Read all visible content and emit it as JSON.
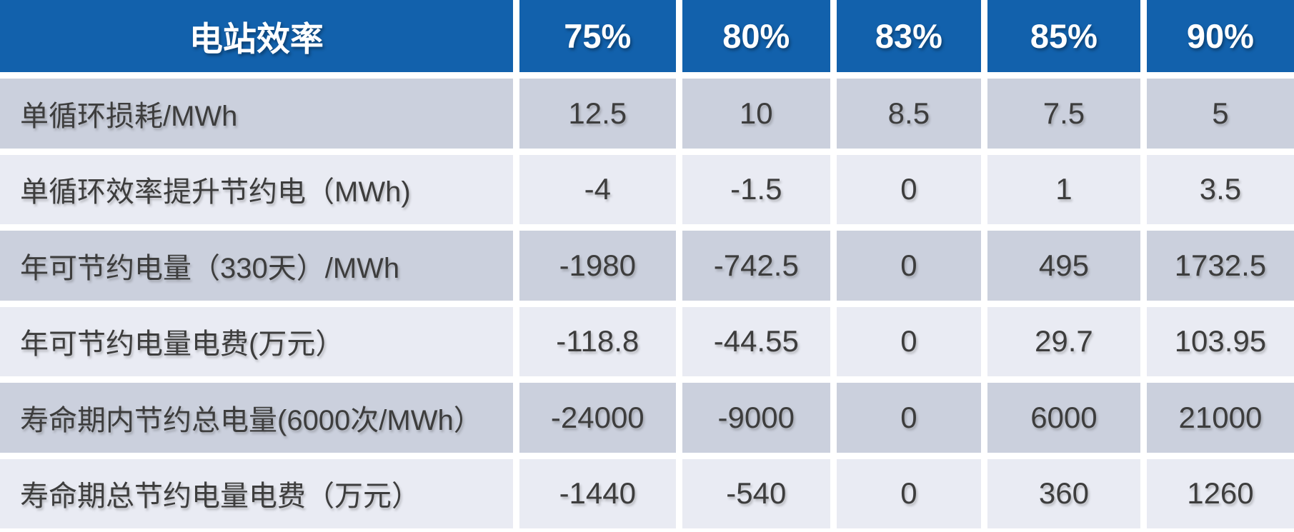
{
  "colors": {
    "header_bg": "#1261ac",
    "header_fg": "#ffffff",
    "row_dark": "#cbd0dd",
    "row_light": "#e9ebf3",
    "text": "#3d3d3d",
    "page_bg": "#ffffff"
  },
  "table": {
    "header": {
      "label": "电站效率",
      "columns": [
        "75%",
        "80%",
        "83%",
        "85%",
        "90%"
      ]
    },
    "rows": [
      {
        "label": "单循环损耗/MWh",
        "values": [
          "12.5",
          "10",
          "8.5",
          "7.5",
          "5"
        ]
      },
      {
        "label": "单循环效率提升节约电（MWh)",
        "values": [
          "-4",
          "-1.5",
          "0",
          "1",
          "3.5"
        ]
      },
      {
        "label": "年可节约电量（330天）/MWh",
        "values": [
          "-1980",
          "-742.5",
          "0",
          "495",
          "1732.5"
        ]
      },
      {
        "label": "年可节约电量电费(万元）",
        "values": [
          "-118.8",
          "-44.55",
          "0",
          "29.7",
          "103.95"
        ]
      },
      {
        "label": "寿命期内节约总电量(6000次/MWh）",
        "values": [
          "-24000",
          "-9000",
          "0",
          "6000",
          "21000"
        ]
      },
      {
        "label": "寿命期总节约电量电费（万元）",
        "values": [
          "-1440",
          "-540",
          "0",
          "360",
          "1260"
        ]
      }
    ]
  },
  "chart_data": {
    "type": "table",
    "title": "电站效率",
    "columns": [
      "电站效率",
      "75%",
      "80%",
      "83%",
      "85%",
      "90%"
    ],
    "rows": [
      [
        "单循环损耗/MWh",
        12.5,
        10,
        8.5,
        7.5,
        5
      ],
      [
        "单循环效率提升节约电（MWh)",
        -4,
        -1.5,
        0,
        1,
        3.5
      ],
      [
        "年可节约电量（330天）/MWh",
        -1980,
        -742.5,
        0,
        495,
        1732.5
      ],
      [
        "年可节约电量电费(万元）",
        -118.8,
        -44.55,
        0,
        29.7,
        103.95
      ],
      [
        "寿命期内节约总电量(6000次/MWh）",
        -24000,
        -9000,
        0,
        6000,
        21000
      ],
      [
        "寿命期总节约电量电费（万元）",
        -1440,
        -540,
        0,
        360,
        1260
      ]
    ]
  }
}
